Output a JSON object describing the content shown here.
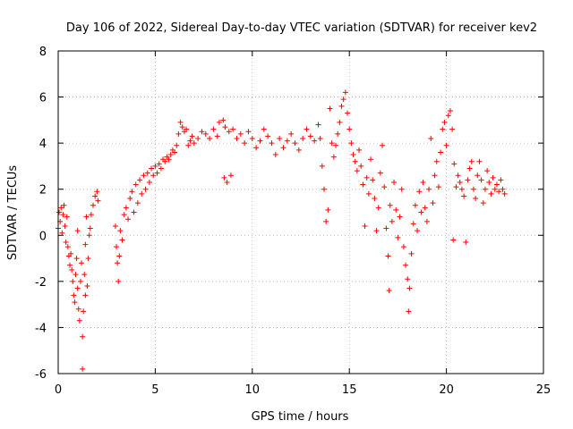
{
  "chart_data": {
    "type": "scatter",
    "title": "Day 106 of 2022, Sidereal Day-to-day VTEC variation (SDTVAR) for receiver kev2",
    "xlabel": "GPS time / hours",
    "ylabel": "SDTVAR / TECUs",
    "xlim": [
      0,
      25
    ],
    "ylim": [
      -6,
      8
    ],
    "xticks": [
      0,
      5,
      10,
      15,
      20,
      25
    ],
    "yticks": [
      -6,
      -4,
      -2,
      0,
      2,
      4,
      6,
      8
    ],
    "grid": true,
    "marker": "+",
    "series": [
      {
        "name": "SDTVAR",
        "color": "#ff0000",
        "points": [
          [
            0.0,
            0.3
          ],
          [
            0.05,
            1.0
          ],
          [
            0.1,
            0.6
          ],
          [
            0.15,
            1.2
          ],
          [
            0.2,
            0.1
          ],
          [
            0.25,
            0.9
          ],
          [
            0.3,
            1.3
          ],
          [
            0.35,
            0.4
          ],
          [
            0.4,
            -0.3
          ],
          [
            0.45,
            0.8
          ],
          [
            0.5,
            -0.5
          ],
          [
            0.55,
            -0.9
          ],
          [
            0.6,
            -1.3
          ],
          [
            0.65,
            -0.8
          ],
          [
            0.7,
            -1.5
          ],
          [
            0.75,
            -2.0
          ],
          [
            0.8,
            -2.6
          ],
          [
            0.85,
            -2.9
          ],
          [
            0.9,
            -1.7
          ],
          [
            0.95,
            -1.0
          ],
          [
            1.0,
            0.2
          ],
          [
            1.0,
            -2.3
          ],
          [
            1.05,
            -3.2
          ],
          [
            1.1,
            -3.7
          ],
          [
            1.15,
            -2.0
          ],
          [
            1.2,
            -1.2
          ],
          [
            1.25,
            -4.4
          ],
          [
            1.25,
            -5.8
          ],
          [
            1.3,
            -3.3
          ],
          [
            1.35,
            -1.7
          ],
          [
            1.4,
            -0.4
          ],
          [
            1.4,
            -2.6
          ],
          [
            1.45,
            0.8
          ],
          [
            1.5,
            -2.2
          ],
          [
            1.55,
            -1.0
          ],
          [
            1.6,
            0.0
          ],
          [
            1.65,
            0.3
          ],
          [
            1.7,
            0.9
          ],
          [
            1.8,
            1.3
          ],
          [
            1.9,
            1.7
          ],
          [
            2.0,
            1.9
          ],
          [
            2.05,
            1.5
          ],
          [
            2.95,
            0.4
          ],
          [
            3.0,
            -0.5
          ],
          [
            3.05,
            -1.2
          ],
          [
            3.1,
            -2.0
          ],
          [
            3.15,
            -0.9
          ],
          [
            3.2,
            0.2
          ],
          [
            3.3,
            -0.2
          ],
          [
            3.4,
            0.9
          ],
          [
            3.5,
            1.2
          ],
          [
            3.6,
            0.7
          ],
          [
            3.7,
            1.6
          ],
          [
            3.8,
            1.9
          ],
          [
            3.9,
            1.0
          ],
          [
            4.0,
            2.2
          ],
          [
            4.1,
            1.4
          ],
          [
            4.2,
            2.4
          ],
          [
            4.3,
            1.8
          ],
          [
            4.4,
            2.6
          ],
          [
            4.5,
            2.0
          ],
          [
            4.6,
            2.7
          ],
          [
            4.7,
            2.3
          ],
          [
            4.8,
            2.9
          ],
          [
            4.9,
            2.6
          ],
          [
            5.0,
            3.0
          ],
          [
            5.1,
            2.7
          ],
          [
            5.2,
            3.1
          ],
          [
            5.3,
            2.9
          ],
          [
            5.4,
            3.3
          ],
          [
            5.5,
            3.2
          ],
          [
            5.6,
            3.4
          ],
          [
            5.7,
            3.3
          ],
          [
            5.8,
            3.5
          ],
          [
            5.9,
            3.7
          ],
          [
            6.0,
            3.6
          ],
          [
            6.1,
            3.9
          ],
          [
            6.2,
            4.4
          ],
          [
            6.3,
            4.9
          ],
          [
            6.4,
            4.7
          ],
          [
            6.5,
            4.5
          ],
          [
            6.6,
            4.6
          ],
          [
            6.7,
            3.9
          ],
          [
            6.8,
            4.1
          ],
          [
            6.9,
            4.3
          ],
          [
            7.0,
            4.0
          ],
          [
            7.2,
            4.2
          ],
          [
            7.4,
            4.5
          ],
          [
            7.6,
            4.4
          ],
          [
            7.8,
            4.2
          ],
          [
            8.0,
            4.6
          ],
          [
            8.2,
            4.3
          ],
          [
            8.3,
            4.9
          ],
          [
            8.5,
            5.0
          ],
          [
            8.55,
            2.5
          ],
          [
            8.6,
            4.7
          ],
          [
            8.7,
            2.3
          ],
          [
            8.8,
            4.5
          ],
          [
            8.9,
            2.6
          ],
          [
            9.0,
            4.6
          ],
          [
            9.2,
            4.2
          ],
          [
            9.4,
            4.4
          ],
          [
            9.6,
            4.0
          ],
          [
            9.8,
            4.5
          ],
          [
            10.0,
            4.2
          ],
          [
            10.2,
            3.8
          ],
          [
            10.4,
            4.1
          ],
          [
            10.6,
            4.6
          ],
          [
            10.8,
            4.3
          ],
          [
            11.0,
            4.0
          ],
          [
            11.2,
            3.5
          ],
          [
            11.4,
            4.2
          ],
          [
            11.6,
            3.8
          ],
          [
            11.8,
            4.1
          ],
          [
            12.0,
            4.4
          ],
          [
            12.2,
            4.0
          ],
          [
            12.4,
            3.7
          ],
          [
            12.6,
            4.2
          ],
          [
            12.8,
            4.6
          ],
          [
            13.0,
            4.3
          ],
          [
            13.2,
            4.1
          ],
          [
            13.4,
            4.8
          ],
          [
            13.5,
            4.2
          ],
          [
            13.6,
            3.0
          ],
          [
            13.7,
            2.0
          ],
          [
            13.8,
            0.6
          ],
          [
            13.9,
            1.1
          ],
          [
            14.0,
            5.5
          ],
          [
            14.1,
            4.0
          ],
          [
            14.2,
            3.4
          ],
          [
            14.3,
            3.9
          ],
          [
            14.4,
            4.4
          ],
          [
            14.5,
            4.9
          ],
          [
            14.6,
            5.6
          ],
          [
            14.7,
            5.9
          ],
          [
            14.8,
            6.2
          ],
          [
            14.9,
            5.3
          ],
          [
            15.0,
            4.6
          ],
          [
            15.1,
            4.0
          ],
          [
            15.2,
            3.5
          ],
          [
            15.3,
            3.2
          ],
          [
            15.4,
            2.8
          ],
          [
            15.5,
            3.7
          ],
          [
            15.6,
            3.0
          ],
          [
            15.7,
            2.2
          ],
          [
            15.8,
            0.4
          ],
          [
            15.9,
            2.5
          ],
          [
            16.0,
            1.8
          ],
          [
            16.1,
            3.3
          ],
          [
            16.2,
            2.4
          ],
          [
            16.3,
            1.6
          ],
          [
            16.4,
            0.2
          ],
          [
            16.5,
            1.2
          ],
          [
            16.6,
            2.7
          ],
          [
            16.7,
            3.9
          ],
          [
            16.8,
            2.1
          ],
          [
            16.9,
            0.3
          ],
          [
            17.0,
            -0.9
          ],
          [
            17.05,
            -2.4
          ],
          [
            17.1,
            1.3
          ],
          [
            17.2,
            0.6
          ],
          [
            17.3,
            2.3
          ],
          [
            17.4,
            1.1
          ],
          [
            17.5,
            -0.1
          ],
          [
            17.6,
            0.8
          ],
          [
            17.7,
            2.0
          ],
          [
            17.8,
            -0.5
          ],
          [
            17.9,
            -1.3
          ],
          [
            18.0,
            -1.9
          ],
          [
            18.05,
            -3.3
          ],
          [
            18.1,
            -2.3
          ],
          [
            18.2,
            -0.8
          ],
          [
            18.3,
            0.5
          ],
          [
            18.4,
            1.3
          ],
          [
            18.5,
            0.2
          ],
          [
            18.6,
            1.9
          ],
          [
            18.7,
            1.0
          ],
          [
            18.8,
            2.3
          ],
          [
            18.9,
            1.2
          ],
          [
            19.0,
            0.6
          ],
          [
            19.1,
            2.0
          ],
          [
            19.2,
            4.2
          ],
          [
            19.3,
            1.4
          ],
          [
            19.4,
            2.6
          ],
          [
            19.5,
            3.2
          ],
          [
            19.6,
            2.1
          ],
          [
            19.7,
            3.6
          ],
          [
            19.8,
            4.6
          ],
          [
            19.9,
            4.9
          ],
          [
            20.0,
            3.9
          ],
          [
            20.1,
            5.2
          ],
          [
            20.2,
            5.4
          ],
          [
            20.3,
            4.6
          ],
          [
            20.35,
            -0.2
          ],
          [
            20.4,
            3.1
          ],
          [
            20.5,
            2.1
          ],
          [
            20.6,
            2.6
          ],
          [
            20.7,
            2.3
          ],
          [
            20.8,
            2.0
          ],
          [
            20.9,
            1.7
          ],
          [
            21.0,
            -0.3
          ],
          [
            21.1,
            2.4
          ],
          [
            21.2,
            2.9
          ],
          [
            21.3,
            3.2
          ],
          [
            21.4,
            2.0
          ],
          [
            21.5,
            1.6
          ],
          [
            21.6,
            2.6
          ],
          [
            21.7,
            3.2
          ],
          [
            21.8,
            2.4
          ],
          [
            21.9,
            1.4
          ],
          [
            22.0,
            2.0
          ],
          [
            22.1,
            2.8
          ],
          [
            22.2,
            2.3
          ],
          [
            22.3,
            1.8
          ],
          [
            22.4,
            2.5
          ],
          [
            22.5,
            2.0
          ],
          [
            22.6,
            2.2
          ],
          [
            22.7,
            1.9
          ],
          [
            22.8,
            2.4
          ],
          [
            22.9,
            2.0
          ],
          [
            23.0,
            1.8
          ]
        ]
      }
    ]
  }
}
